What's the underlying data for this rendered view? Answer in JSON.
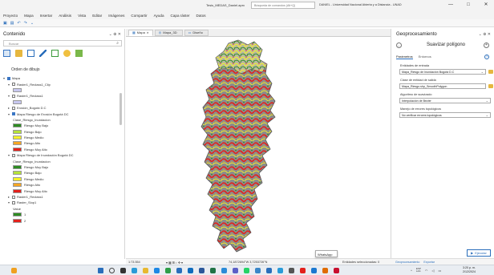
{
  "titlebar": {
    "doc_title": "Tesis_MEDAS_Daniel.aprx",
    "search_placeholder": "Búsqueda de comandos (Alt+Q)",
    "org_text": "DANIEL - Universidad Nacional Abierta y a Distancia - UNAD",
    "help_icon": "question-icon",
    "minimize_label": "—",
    "maximize_label": "□",
    "close_label": "✕"
  },
  "menubar": {
    "items": [
      "Proyecto",
      "Mapa",
      "Insertar",
      "Análisis",
      "Vista",
      "Editar",
      "Imágenes",
      "Compartir",
      "Ayuda",
      "Capa ráster",
      "Datos"
    ]
  },
  "quick_toolbar": {
    "icons": [
      "new-icon",
      "save-icon",
      "undo-icon",
      "redo-icon",
      "customize-icon"
    ]
  },
  "contents": {
    "title": "Contenido",
    "controls": "⌄ ⊕ ✕",
    "search_placeholder": "Buscar",
    "search_icon": "search-icon",
    "draw_order_label": "Orden de dibujo",
    "tree": [
      {
        "label": "Mapa",
        "indent": 0,
        "checked": true,
        "expanded": true,
        "kind": "map"
      },
      {
        "label": "Raster1_Reclass1_Clip",
        "indent": 1,
        "checked": false,
        "expanded": true,
        "kind": "layer"
      },
      {
        "label": "",
        "indent": 2,
        "swatch": "#c8c8f0",
        "kind": "swatch"
      },
      {
        "label": "Raster1_Reclass1",
        "indent": 1,
        "checked": false,
        "expanded": true,
        "kind": "layer"
      },
      {
        "label": "",
        "indent": 2,
        "swatch": "#c8c8f0",
        "kind": "swatch"
      },
      {
        "label": "Erosión_Bogotá D.C",
        "indent": 1,
        "checked": false,
        "expanded": false,
        "kind": "layer"
      },
      {
        "label": "Mapa Riesgo de Erosión Bogotá DC",
        "indent": 1,
        "checked": true,
        "expanded": true,
        "kind": "layer"
      },
      {
        "label": "Clase_Riesgo_Inundacion",
        "indent": 2,
        "kind": "text"
      },
      {
        "label": "Riesgo Muy Bajo",
        "indent": 2,
        "swatch": "#2e8b22",
        "kind": "swatch"
      },
      {
        "label": "Riesgo Bajo",
        "indent": 2,
        "swatch": "#b5e23a",
        "kind": "swatch"
      },
      {
        "label": "Riesgo Medio",
        "indent": 2,
        "swatch": "#f5f228",
        "kind": "swatch"
      },
      {
        "label": "Riesgo Alto",
        "indent": 2,
        "swatch": "#f5a623",
        "kind": "swatch"
      },
      {
        "label": "Riesgo Muy Alto",
        "indent": 2,
        "swatch": "#e3211c",
        "kind": "swatch"
      },
      {
        "label": "Mapa Riesgo de Inundación Bogotá DC",
        "indent": 1,
        "checked": false,
        "expanded": true,
        "kind": "layer"
      },
      {
        "label": "Clase_Riesgo_Inundacion",
        "indent": 2,
        "kind": "text"
      },
      {
        "label": "Riesgo Muy Bajo",
        "indent": 2,
        "swatch": "#2e8b22",
        "kind": "swatch"
      },
      {
        "label": "Riesgo Bajo",
        "indent": 2,
        "swatch": "#b5e23a",
        "kind": "swatch"
      },
      {
        "label": "Riesgo Medio",
        "indent": 2,
        "swatch": "#f5f228",
        "kind": "swatch"
      },
      {
        "label": "Riesgo Alto",
        "indent": 2,
        "swatch": "#f5a623",
        "kind": "swatch"
      },
      {
        "label": "Riesgo Muy Alto",
        "indent": 2,
        "swatch": "#e3211c",
        "kind": "swatch"
      },
      {
        "label": "Raster1_Reclass1",
        "indent": 1,
        "checked": false,
        "expanded": false,
        "kind": "layer"
      },
      {
        "label": "Raster_Slop1",
        "indent": 1,
        "checked": false,
        "expanded": true,
        "kind": "layer"
      },
      {
        "label": "Value",
        "indent": 2,
        "kind": "text"
      },
      {
        "label": "1",
        "indent": 2,
        "swatch": "#2e8b22",
        "kind": "swatch"
      },
      {
        "label": "2",
        "indent": 2,
        "swatch": "#e3211c",
        "kind": "swatch"
      }
    ]
  },
  "map_tabs": [
    {
      "label": "Mapa",
      "active": true,
      "icon": "map-icon"
    },
    {
      "label": "Mapa_3D",
      "active": false,
      "icon": "globe-icon"
    },
    {
      "label": "Diseño",
      "active": false,
      "icon": "layout-icon"
    }
  ],
  "statusbar": {
    "scale": "1:73.554",
    "coords": "74,1872694°W 3,7253726°N",
    "tooltip": "WhatsApp",
    "selected": "Entidades seleccionadas: 0"
  },
  "geoprocessing": {
    "title": "Geoprocesamiento",
    "controls": "⌄ ⊕ ✕",
    "tool_name": "Suavizar polígono",
    "tabs": [
      "Parámetros",
      "Entornos"
    ],
    "fields": [
      {
        "label": "Entidades de entrada",
        "value": "Mapa_Riesgo de Inundación Bogotá D.C",
        "kind": "dropdown",
        "folder": true
      },
      {
        "label": "Clase de entidad de salida",
        "value": "Mapa_Riesgo.shp_SmoothPolygon",
        "kind": "text",
        "folder": true
      },
      {
        "label": "Algoritmo de suavizado",
        "value": "Interpolación de Bezier",
        "kind": "dropdown",
        "folder": false
      },
      {
        "label": "Manejo de errores topológicos",
        "value": "No verificar errores topológicos",
        "kind": "dropdown",
        "folder": false
      }
    ],
    "run_label": "Ejecutar",
    "bottom_tabs": [
      "Geoprocesamiento",
      "Exportar"
    ]
  },
  "taskbar": {
    "icons": [
      {
        "name": "weather-icon",
        "color": "#f0a020"
      },
      {
        "name": "start-icon",
        "color": "#2a6ebb"
      },
      {
        "name": "search-icon",
        "color": "#444444"
      },
      {
        "name": "taskview-icon",
        "color": "#333333"
      },
      {
        "name": "widgets-icon",
        "color": "#2a9bd8"
      },
      {
        "name": "explorer-icon",
        "color": "#e8b830"
      },
      {
        "name": "edge-icon",
        "color": "#1e88e5"
      },
      {
        "name": "chrome-icon",
        "color": "#2e9e48"
      },
      {
        "name": "store-icon",
        "color": "#2a6ebb"
      },
      {
        "name": "outlook-icon",
        "color": "#0f6cbd"
      },
      {
        "name": "word-icon",
        "color": "#2b579a"
      },
      {
        "name": "excel-icon",
        "color": "#217346"
      },
      {
        "name": "arcgis-icon",
        "color": "#2a8bd8"
      },
      {
        "name": "teams-icon",
        "color": "#5b5fc7"
      },
      {
        "name": "whatsapp-icon",
        "color": "#25d366"
      },
      {
        "name": "photos-icon",
        "color": "#3a86c8"
      },
      {
        "name": "maps-icon",
        "color": "#2a6ebb"
      },
      {
        "name": "app-icon",
        "color": "#2a9bd8"
      },
      {
        "name": "settings-icon",
        "color": "#555555"
      },
      {
        "name": "app2-icon",
        "color": "#e3211c"
      },
      {
        "name": "app3-icon",
        "color": "#1b78d0"
      },
      {
        "name": "app4-icon",
        "color": "#e06c00"
      },
      {
        "name": "app5-icon",
        "color": "#c8102e"
      }
    ],
    "tray": {
      "lang": "ESP\nLAA",
      "time": "3:20 p. m.",
      "date": "2/12/2024"
    }
  }
}
